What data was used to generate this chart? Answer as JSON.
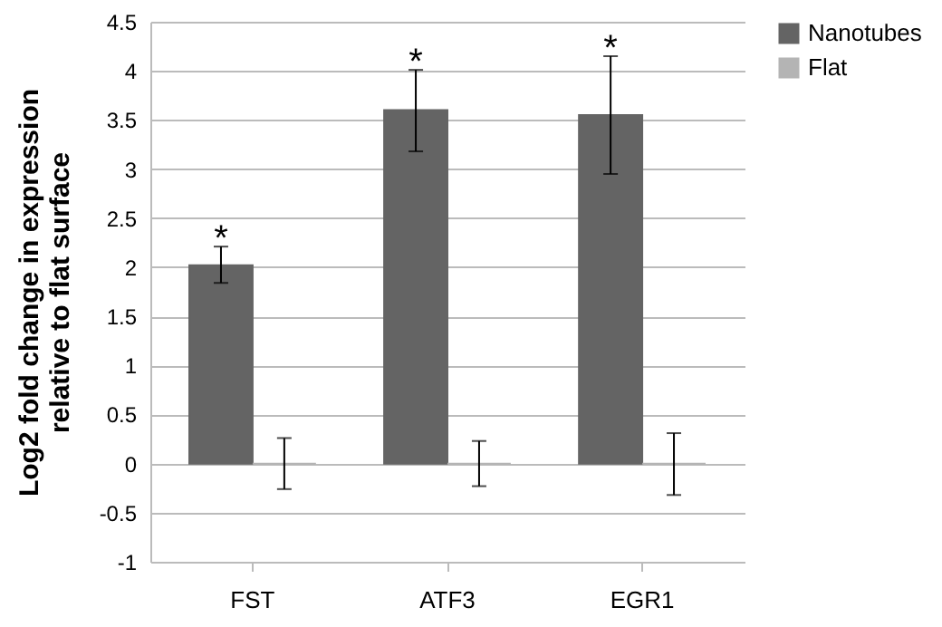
{
  "chart_data": {
    "type": "bar",
    "ylabel": "Log2 fold change in expression\nrelative to flat surface",
    "categories": [
      "FST",
      "ATF3",
      "EGR1"
    ],
    "series": [
      {
        "name": "Nanotubes",
        "color": "#646464",
        "values": [
          2.02,
          3.6,
          3.55
        ],
        "errors": [
          [
            1.84,
            2.21
          ],
          [
            3.18,
            4.01
          ],
          [
            2.95,
            4.15
          ]
        ]
      },
      {
        "name": "Flat",
        "color": "#b4b4b4",
        "values": [
          0,
          0,
          0
        ],
        "errors": [
          [
            -0.26,
            0.26
          ],
          [
            -0.23,
            0.23
          ],
          [
            -0.32,
            0.31
          ]
        ]
      }
    ],
    "ylim": [
      -1,
      4.5
    ],
    "yticks": [
      -1,
      -0.5,
      0,
      0.5,
      1,
      1.5,
      2,
      2.5,
      3,
      3.5,
      4,
      4.5
    ],
    "grid": "y",
    "legend": "right",
    "annotations": [
      "*",
      "*",
      "*"
    ]
  }
}
